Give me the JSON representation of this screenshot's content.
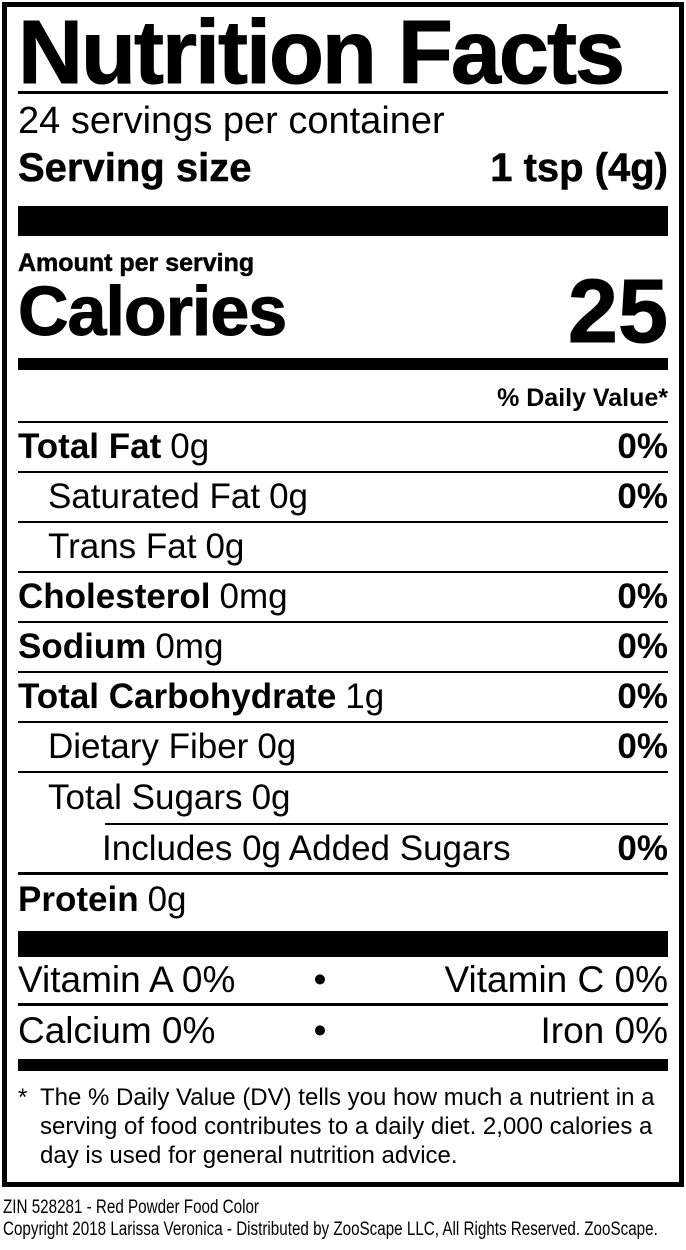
{
  "label": {
    "title": "Nutrition Facts",
    "servings_per_container": "24 servings per container",
    "serving_size_label": "Serving size",
    "serving_size_value": "1 tsp (4g)",
    "amount_per_serving": "Amount per serving",
    "calories_label": "Calories",
    "calories_value": "25",
    "daily_value_header": "% Daily Value*",
    "rows": [
      {
        "name": "Total Fat",
        "amount": "0g",
        "dv": "0%"
      },
      {
        "name": "Saturated Fat",
        "amount": "0g",
        "dv": "0%"
      },
      {
        "name": "Trans Fat",
        "amount": "0g",
        "dv": ""
      },
      {
        "name": "Cholesterol",
        "amount": "0mg",
        "dv": "0%"
      },
      {
        "name": "Sodium",
        "amount": "0mg",
        "dv": "0%"
      },
      {
        "name": "Total Carbohydrate",
        "amount": "1g",
        "dv": "0%"
      },
      {
        "name": "Dietary Fiber",
        "amount": "0g",
        "dv": "0%"
      },
      {
        "name": "Total Sugars",
        "amount": "0g",
        "dv": ""
      },
      {
        "name": "Includes 0g Added Sugars",
        "amount": "",
        "dv": "0%"
      },
      {
        "name": "Protein",
        "amount": "0g",
        "dv": ""
      }
    ],
    "micronutrients": {
      "vitamin_a": "Vitamin A 0%",
      "vitamin_c": "Vitamin C 0%",
      "calcium": "Calcium 0%",
      "iron": "Iron 0%",
      "separator": "•"
    },
    "footnote_marker": "*",
    "footnote": "The % Daily Value (DV) tells you how much a nutrient in a serving of food contributes to a daily diet. 2,000 calories a day is used for general nutrition advice."
  },
  "footer": {
    "line1": "ZIN 528281 - Red Powder Food Color",
    "line2": "Copyright 2018 Larissa Veronica - Distributed by ZooScape LLC, All Rights Reserved. ZooScape."
  },
  "colors": {
    "ink": "#000000",
    "background": "#ffffff"
  }
}
